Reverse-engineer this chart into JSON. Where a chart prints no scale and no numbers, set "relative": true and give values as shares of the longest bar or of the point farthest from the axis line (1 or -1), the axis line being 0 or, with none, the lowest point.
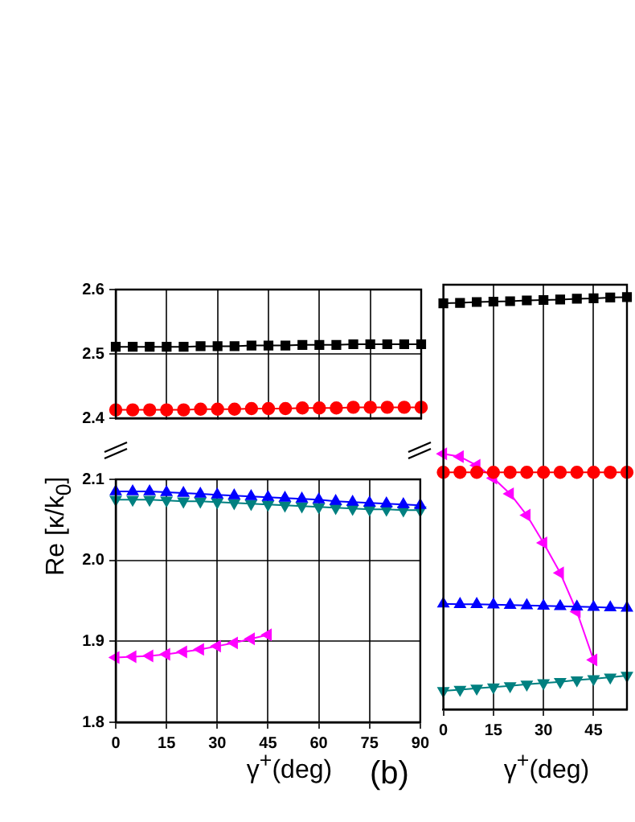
{
  "chart_data": [
    {
      "type": "line",
      "grid": true,
      "legend": false,
      "tick_labels": "y",
      "x": [
        0,
        5,
        10,
        15,
        20,
        25,
        30,
        35,
        40,
        45,
        50,
        55,
        60,
        65,
        70,
        75,
        80,
        85,
        90
      ],
      "xlim": [
        0,
        90
      ],
      "xticks": [
        0,
        15,
        30,
        45,
        60,
        75,
        90
      ],
      "ylim": [
        2.4,
        2.6
      ],
      "yticks": [
        2.4,
        2.5,
        2.6
      ],
      "series": [
        {
          "color": "#000000",
          "marker": "square",
          "values": [
            2.511,
            2.511,
            2.511,
            2.511,
            2.511,
            2.512,
            2.512,
            2.512,
            2.513,
            2.513,
            2.513,
            2.514,
            2.514,
            2.514,
            2.515,
            2.515,
            2.515,
            2.515,
            2.515
          ]
        },
        {
          "color": "#ff0000",
          "marker": "circle",
          "values": [
            2.413,
            2.413,
            2.413,
            2.413,
            2.413,
            2.414,
            2.414,
            2.414,
            2.415,
            2.415,
            2.415,
            2.416,
            2.416,
            2.416,
            2.417,
            2.417,
            2.417,
            2.417,
            2.417
          ]
        }
      ]
    },
    {
      "type": "line",
      "xlabel": "γ$^{+}$(deg)",
      "ylabel": "Re [κ/k$_{0}$]",
      "grid": true,
      "legend": false,
      "x": [
        0,
        5,
        10,
        15,
        20,
        25,
        30,
        35,
        40,
        45,
        50,
        55,
        60,
        65,
        70,
        75,
        80,
        85,
        90
      ],
      "xlim": [
        0,
        90
      ],
      "xticks": [
        0,
        15,
        30,
        45,
        60,
        75,
        90
      ],
      "ylim": [
        1.8,
        2.1
      ],
      "yticks": [
        1.8,
        1.9,
        {
          "value": 2.0,
          "label": "2.0"
        },
        2.1
      ],
      "series": [
        {
          "color": "#0000ff",
          "marker": "triangle",
          "values": [
            2.085,
            2.085,
            2.085,
            2.084,
            2.083,
            2.082,
            2.081,
            2.08,
            2.079,
            2.078,
            2.077,
            2.076,
            2.075,
            2.073,
            2.072,
            2.071,
            2.07,
            2.069,
            2.068
          ]
        },
        {
          "color": "#008080",
          "marker": "triangle",
          "values": [
            2.075,
            2.075,
            2.075,
            2.074,
            2.073,
            2.073,
            2.072,
            2.071,
            2.07,
            2.069,
            2.068,
            2.067,
            2.066,
            2.065,
            2.064,
            2.063,
            2.063,
            2.062,
            2.062
          ]
        },
        {
          "color": "#ff00ff",
          "marker": "triangle",
          "x": [
            0,
            5,
            10,
            15,
            20,
            25,
            30,
            35,
            40,
            45
          ],
          "values": [
            1.88,
            1.881,
            1.882,
            1.884,
            1.887,
            1.89,
            1.894,
            1.898,
            1.903,
            1.908
          ]
        }
      ]
    },
    {
      "type": "line",
      "xlabel": "γ$^{+}$(deg)",
      "relative": true,
      "grid": "x",
      "legend": false,
      "tick_labels": "x",
      "annotations": [
        "(b)"
      ],
      "x": [
        0,
        5,
        10,
        15,
        20,
        25,
        30,
        35,
        40,
        45,
        50,
        55
      ],
      "xlim": [
        0,
        55
      ],
      "xticks": [
        0,
        15,
        30,
        45
      ],
      "series": [
        {
          "color": "#000000",
          "marker": "square",
          "values": [
            0.985,
            0.986,
            0.988,
            0.989,
            0.99,
            0.992,
            0.993,
            0.994,
            0.996,
            0.997,
            0.999,
            1.0
          ]
        },
        {
          "color": "#ff0000",
          "marker": "circle",
          "values": [
            0.575,
            0.575,
            0.575,
            0.575,
            0.575,
            0.575,
            0.575,
            0.575,
            0.575,
            0.575,
            0.575,
            0.575
          ]
        },
        {
          "color": "#0000ff",
          "marker": "triangle",
          "values": [
            0.256,
            0.255,
            0.255,
            0.254,
            0.253,
            0.252,
            0.251,
            0.25,
            0.249,
            0.248,
            0.247,
            0.246
          ]
        },
        {
          "color": "#008080",
          "marker": "triangle",
          "values": [
            0.045,
            0.048,
            0.051,
            0.054,
            0.057,
            0.061,
            0.064,
            0.067,
            0.071,
            0.074,
            0.078,
            0.082
          ]
        },
        {
          "color": "#ff00ff",
          "marker": "triangle",
          "x": [
            0,
            5,
            10,
            15,
            20,
            25,
            30,
            35,
            40,
            45
          ],
          "values": [
            0.62,
            0.613,
            0.592,
            0.561,
            0.523,
            0.471,
            0.404,
            0.331,
            0.237,
            0.12
          ]
        }
      ]
    }
  ]
}
